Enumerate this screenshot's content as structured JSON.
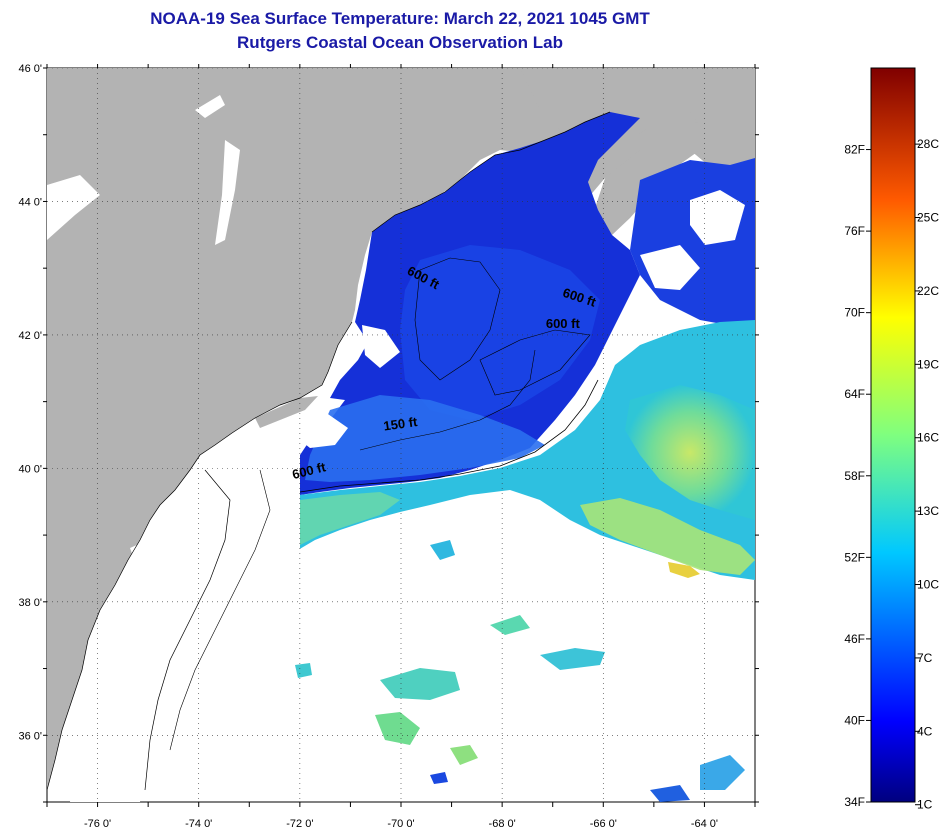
{
  "header": {
    "title": "NOAA-19 Sea Surface Temperature:  March 22, 2021 1045 GMT",
    "subtitle": "Rutgers Coastal Ocean Observation Lab"
  },
  "map": {
    "lat_labels": [
      "46 0'",
      "44 0'",
      "42 0'",
      "40 0'",
      "38 0'",
      "36 0'"
    ],
    "lon_labels": [
      "-76 0'",
      "-74 0'",
      "-72 0'",
      "-70 0'",
      "-68 0'",
      "-66 0'",
      "-64 0'"
    ],
    "lat_range": [
      35,
      46
    ],
    "lon_range": [
      -77,
      -63
    ],
    "contours": [
      {
        "label": "600 ft",
        "lon": -69.6,
        "lat": 42.8,
        "angle": 28
      },
      {
        "label": "600 ft",
        "lon": -66.5,
        "lat": 42.5,
        "angle": 18
      },
      {
        "label": "600 ft",
        "lon": -66.8,
        "lat": 42.1,
        "angle": 0
      },
      {
        "label": "150 ft",
        "lon": -70.0,
        "lat": 40.6,
        "angle": -8
      },
      {
        "label": "600 ft",
        "lon": -71.8,
        "lat": 39.9,
        "angle": -14
      }
    ],
    "colors": {
      "land": "#b3b3b3",
      "cloud": "#ffffff",
      "cold_water": "#1530d8",
      "mid_water": "#2a7bf0",
      "warm_water": "#22c7e6",
      "warmer_water": "#7fe0a0"
    }
  },
  "colorbar": {
    "fahrenheit_labels": [
      "82F",
      "76F",
      "70F",
      "64F",
      "58F",
      "52F",
      "46F",
      "40F",
      "34F"
    ],
    "celsius_labels": [
      "28C",
      "25C",
      "22C",
      "19C",
      "16C",
      "13C",
      "10C",
      "7C",
      "4C",
      "1C"
    ],
    "f_range": [
      34,
      88
    ],
    "c_range": [
      1,
      31
    ]
  }
}
